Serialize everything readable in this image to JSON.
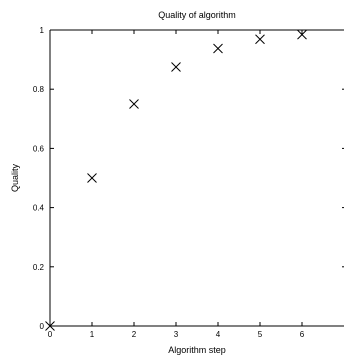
{
  "chart_data": {
    "type": "scatter",
    "title": "Quality of algorithm",
    "xlabel": "Algorithm step",
    "ylabel": "Quality",
    "xlim": [
      0,
      7
    ],
    "ylim": [
      0,
      1
    ],
    "x_ticks": [
      "0",
      "1",
      "2",
      "3",
      "4",
      "5",
      "6"
    ],
    "y_ticks": [
      "0",
      "0.2",
      "0.4",
      "0.6",
      "0.8",
      "1"
    ],
    "marker": "x",
    "grid": false,
    "series": [
      {
        "x": [
          0,
          1,
          2,
          3,
          4,
          5,
          6
        ],
        "y": [
          0,
          0.5,
          0.75,
          0.875,
          0.9375,
          0.96875,
          0.984375
        ]
      }
    ]
  }
}
